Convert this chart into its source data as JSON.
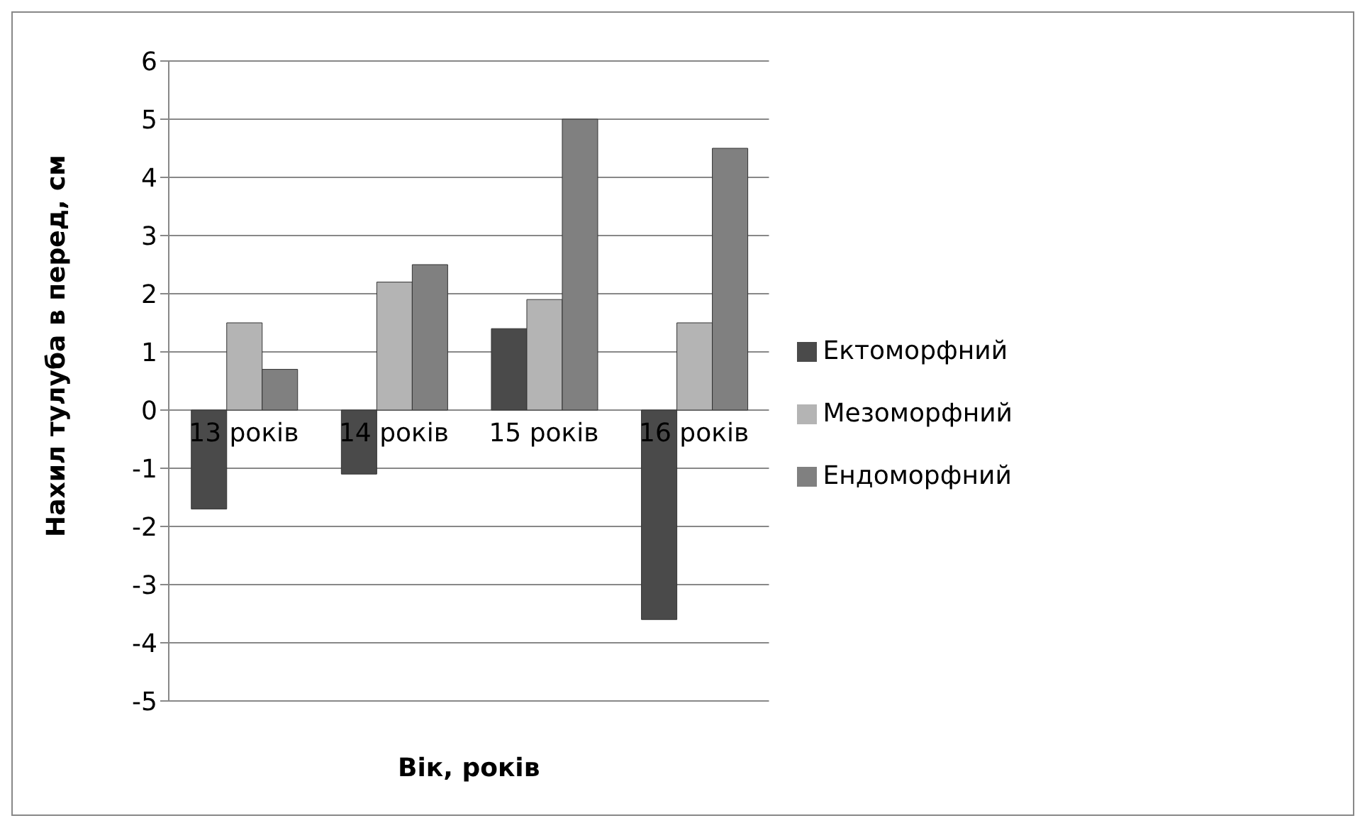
{
  "chart_data": {
    "type": "bar",
    "xlabel": "Вік, років",
    "ylabel": "Нахил тулуба в перед, см",
    "categories": [
      "13 років",
      "14 років",
      "15 років",
      "16 років"
    ],
    "series": [
      {
        "name": "Ектоморфний",
        "color": "#4a4a4a",
        "values": [
          -1.7,
          -1.1,
          1.4,
          -3.6
        ]
      },
      {
        "name": "Мезоморфний",
        "color": "#b4b4b4",
        "values": [
          1.5,
          2.2,
          1.9,
          1.5
        ]
      },
      {
        "name": "Ендоморфний",
        "color": "#808080",
        "values": [
          0.7,
          2.5,
          5.0,
          4.5
        ]
      }
    ],
    "ylim": [
      -5,
      6
    ],
    "yticks": [
      -5,
      -4,
      -3,
      -2,
      -1,
      0,
      1,
      2,
      3,
      4,
      5,
      6
    ],
    "grid": "y",
    "legend": "right"
  }
}
